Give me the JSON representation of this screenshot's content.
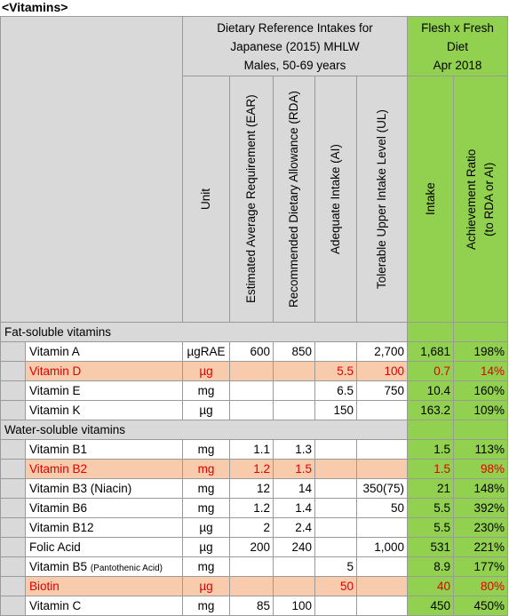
{
  "title": "<Vitamins>",
  "header": {
    "dri": [
      "Dietary Reference Intakes for",
      "Japanese (2015) MHLW",
      "Males, 50-69 years"
    ],
    "diet": [
      "Flesh x Fresh",
      "Diet",
      "Apr 2018"
    ],
    "columns": [
      [
        "Unit"
      ],
      [
        "Estimated Average Requirement (EAR)"
      ],
      [
        "Recommended Dietary Allowance (RDA)"
      ],
      [
        "Adequate Intake (AI)"
      ],
      [
        "Tolerable Upper Intake Level (UL)"
      ],
      [
        "Intake"
      ],
      [
        "Achievement Ratio",
        "(to RDA or AI)"
      ]
    ]
  },
  "sections": [
    {
      "title": "Fat-soluble vitamins",
      "rows": [
        {
          "name": "Vitamin A",
          "unit": "µgRAE",
          "values": [
            "600",
            "850",
            null,
            "2,700"
          ],
          "intake": "1,681",
          "ratio": "198%"
        },
        {
          "name": "Vitamin D",
          "unit": "µg",
          "values": [
            null,
            null,
            "5.5",
            "100"
          ],
          "intake": "0.7",
          "ratio": "14%",
          "highlight": true
        },
        {
          "name": "Vitamin E",
          "unit": "mg",
          "values": [
            null,
            null,
            "6.5",
            "750"
          ],
          "intake": "10.4",
          "ratio": "160%"
        },
        {
          "name": "Vitamin K",
          "unit": "µg",
          "values": [
            null,
            null,
            "150",
            null
          ],
          "intake": "163.2",
          "ratio": "109%"
        }
      ]
    },
    {
      "title": "Water-soluble vitamins",
      "rows": [
        {
          "name": "Vitamin B1",
          "unit": "mg",
          "values": [
            "1.1",
            "1.3",
            null,
            null
          ],
          "intake": "1.5",
          "ratio": "113%"
        },
        {
          "name": "Vitamin B2",
          "unit": "mg",
          "values": [
            "1.2",
            "1.5",
            null,
            null
          ],
          "intake": "1.5",
          "ratio": "98%",
          "highlight": true
        },
        {
          "name": "Vitamin B3 (Niacin)",
          "unit": "mg",
          "values": [
            "12",
            "14",
            null,
            "350(75)"
          ],
          "intake": "21",
          "ratio": "148%"
        },
        {
          "name": "Vitamin B6",
          "unit": "mg",
          "values": [
            "1.2",
            "1.4",
            null,
            "50"
          ],
          "intake": "5.5",
          "ratio": "392%"
        },
        {
          "name": "Vitamin B12",
          "unit": "µg",
          "values": [
            "2",
            "2.4",
            null,
            null
          ],
          "intake": "5.5",
          "ratio": "230%"
        },
        {
          "name": "Folic Acid",
          "unit": "µg",
          "values": [
            "200",
            "240",
            null,
            "1,000"
          ],
          "intake": "531",
          "ratio": "221%"
        },
        {
          "name": "Vitamin B5",
          "note": "(Pantothenic Acid)",
          "unit": "mg",
          "values": [
            null,
            null,
            "5",
            null
          ],
          "intake": "8.9",
          "ratio": "177%"
        },
        {
          "name": "Biotin",
          "unit": "µg",
          "values": [
            null,
            null,
            "50",
            null
          ],
          "intake": "40",
          "ratio": "80%",
          "highlight": true
        },
        {
          "name": "Vitamin C",
          "unit": "mg",
          "values": [
            "85",
            "100",
            null,
            null
          ],
          "intake": "450",
          "ratio": "450%"
        }
      ]
    }
  ]
}
